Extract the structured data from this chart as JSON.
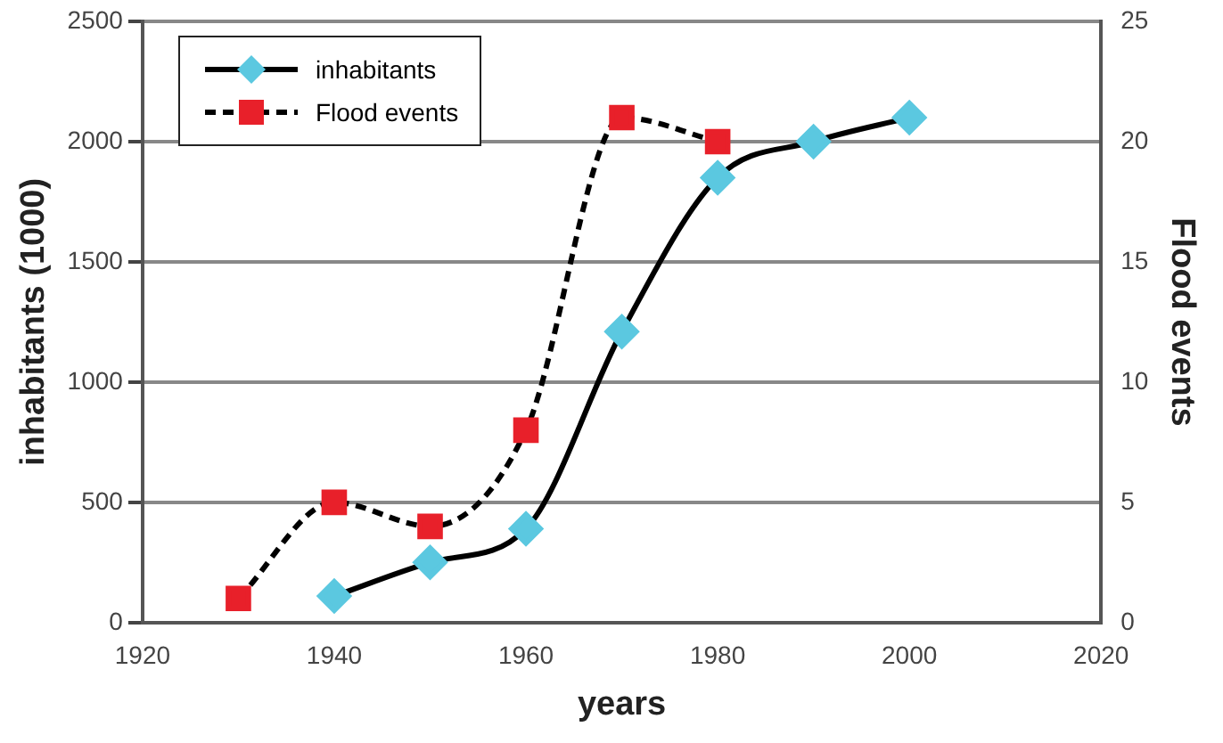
{
  "chart_data": {
    "type": "line",
    "xlabel": "years",
    "ylabel": "inhabitants (1000)",
    "y2label": "Flood events",
    "xlim": [
      1920,
      2020
    ],
    "xticks": [
      1920,
      1940,
      1960,
      1980,
      2000,
      2020
    ],
    "ylim": [
      0,
      2500
    ],
    "yticks": [
      0,
      500,
      1000,
      1500,
      2000,
      2500
    ],
    "y2lim": [
      0,
      25
    ],
    "y2ticks": [
      0,
      5,
      10,
      15,
      20,
      25
    ],
    "grid": "y",
    "legend": "top left",
    "series": [
      {
        "name": "inhabitants",
        "color": "#5bc8e0",
        "marker": "diamond",
        "line_style": "solid",
        "x": [
          1940,
          1950,
          1960,
          1970,
          1980,
          1990,
          2000
        ],
        "values": [
          110,
          250,
          390,
          1210,
          1850,
          2000,
          2100
        ]
      },
      {
        "name": "Flood events",
        "color": "#e8202a",
        "marker": "square",
        "line_style": "dashed",
        "axis": "y2",
        "x": [
          1930,
          1940,
          1950,
          1960,
          1970,
          1980
        ],
        "values": [
          1,
          5,
          4,
          8,
          21,
          20
        ]
      }
    ]
  }
}
